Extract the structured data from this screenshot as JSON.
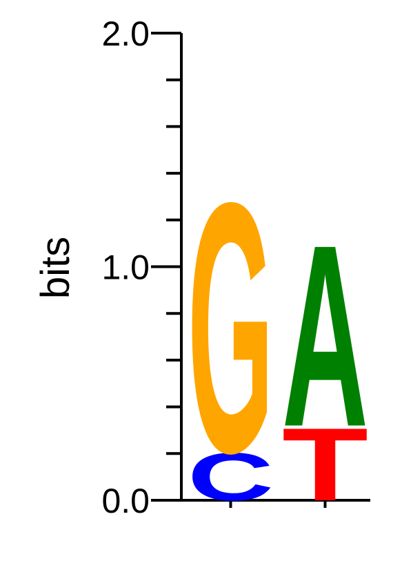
{
  "chart_data": {
    "type": "sequence-logo",
    "ylabel": "bits",
    "ylim": [
      0,
      2
    ],
    "yticks": [
      {
        "value": 0,
        "label": "0.0"
      },
      {
        "value": 1,
        "label": "1.0"
      },
      {
        "value": 2,
        "label": "2.0"
      }
    ],
    "positions": [
      {
        "index": 1,
        "letters": [
          {
            "letter": "C",
            "height": 0.21
          },
          {
            "letter": "G",
            "height": 1.1
          }
        ]
      },
      {
        "index": 2,
        "letters": [
          {
            "letter": "T",
            "height": 0.32
          },
          {
            "letter": "A",
            "height": 0.8
          }
        ]
      }
    ],
    "colors": {
      "A": "#008000",
      "C": "#0000ff",
      "G": "#ffa500",
      "T": "#ff0000"
    }
  }
}
